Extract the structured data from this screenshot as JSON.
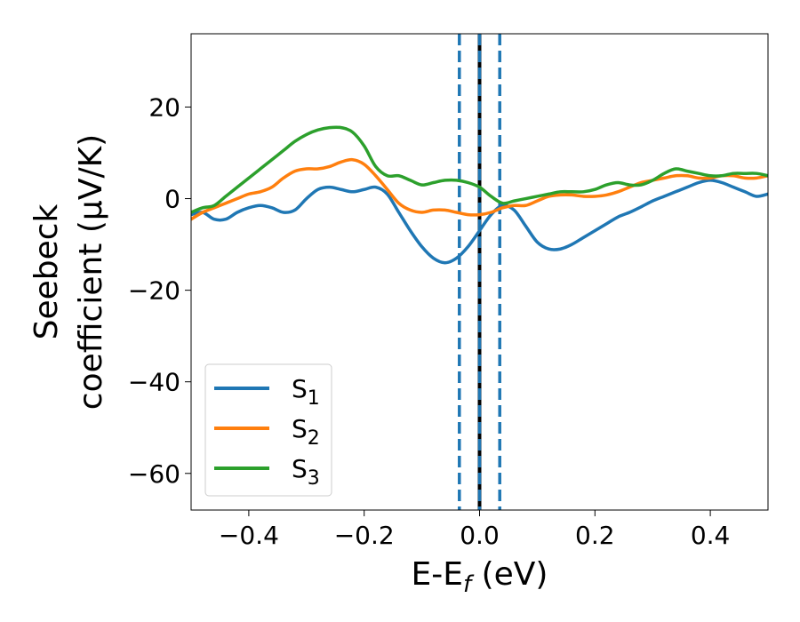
{
  "chart_data": {
    "type": "line",
    "xlabel": {
      "main": "E-E",
      "sub": "f",
      "tail": " (eV)"
    },
    "ylabel": {
      "line1": "Seebeck",
      "line2": "coefficient  (μV/K)"
    },
    "xlim": [
      -0.5,
      0.5
    ],
    "ylim": [
      -68,
      36
    ],
    "xticks": [
      {
        "value": -0.4,
        "label": "−0.4"
      },
      {
        "value": -0.2,
        "label": "−0.2"
      },
      {
        "value": 0.0,
        "label": "0.0"
      },
      {
        "value": 0.2,
        "label": "0.2"
      },
      {
        "value": 0.4,
        "label": "0.4"
      }
    ],
    "yticks": [
      {
        "value": 20,
        "label": "20"
      },
      {
        "value": 0,
        "label": "0"
      },
      {
        "value": -20,
        "label": "−20"
      },
      {
        "value": -40,
        "label": "−40"
      },
      {
        "value": -60,
        "label": "−60"
      }
    ],
    "grid": false,
    "legend_position": "lower-left",
    "vlines": [
      {
        "x": -0.035,
        "style": "dashed",
        "color": "#1f77b4"
      },
      {
        "x": 0.035,
        "style": "dashed",
        "color": "#1f77b4"
      },
      {
        "x": 0.0,
        "style": "solid",
        "color": "#000000"
      },
      {
        "x": 0.0,
        "style": "dashed",
        "color": "#1f77b4"
      }
    ],
    "series": [
      {
        "name": "S",
        "sub": "1",
        "color": "#1f77b4",
        "points": [
          [
            -0.5,
            -3.5
          ],
          [
            -0.48,
            -3.0
          ],
          [
            -0.46,
            -4.5
          ],
          [
            -0.44,
            -4.5
          ],
          [
            -0.42,
            -3.0
          ],
          [
            -0.4,
            -2.0
          ],
          [
            -0.38,
            -1.5
          ],
          [
            -0.36,
            -2.0
          ],
          [
            -0.34,
            -3.0
          ],
          [
            -0.32,
            -2.5
          ],
          [
            -0.3,
            0.0
          ],
          [
            -0.28,
            2.0
          ],
          [
            -0.26,
            2.5
          ],
          [
            -0.24,
            2.0
          ],
          [
            -0.22,
            1.5
          ],
          [
            -0.2,
            2.0
          ],
          [
            -0.18,
            2.5
          ],
          [
            -0.16,
            1.0
          ],
          [
            -0.14,
            -3.0
          ],
          [
            -0.12,
            -7.0
          ],
          [
            -0.1,
            -10.5
          ],
          [
            -0.08,
            -13.0
          ],
          [
            -0.06,
            -14.0
          ],
          [
            -0.04,
            -13.0
          ],
          [
            -0.02,
            -10.5
          ],
          [
            0.0,
            -7.0
          ],
          [
            0.02,
            -3.5
          ],
          [
            0.04,
            -1.5
          ],
          [
            0.06,
            -2.5
          ],
          [
            0.08,
            -6.0
          ],
          [
            0.1,
            -9.5
          ],
          [
            0.12,
            -11.0
          ],
          [
            0.14,
            -11.0
          ],
          [
            0.16,
            -10.0
          ],
          [
            0.18,
            -8.5
          ],
          [
            0.2,
            -7.0
          ],
          [
            0.22,
            -5.5
          ],
          [
            0.24,
            -4.0
          ],
          [
            0.26,
            -3.0
          ],
          [
            0.28,
            -1.8
          ],
          [
            0.3,
            -0.5
          ],
          [
            0.32,
            0.5
          ],
          [
            0.34,
            1.5
          ],
          [
            0.36,
            2.5
          ],
          [
            0.38,
            3.5
          ],
          [
            0.4,
            4.0
          ],
          [
            0.42,
            3.5
          ],
          [
            0.44,
            2.5
          ],
          [
            0.46,
            1.5
          ],
          [
            0.48,
            0.5
          ],
          [
            0.5,
            1.0
          ]
        ]
      },
      {
        "name": "S",
        "sub": "2",
        "color": "#ff7f0e",
        "points": [
          [
            -0.5,
            -4.5
          ],
          [
            -0.48,
            -3.0
          ],
          [
            -0.46,
            -2.0
          ],
          [
            -0.44,
            -1.0
          ],
          [
            -0.42,
            0.0
          ],
          [
            -0.4,
            1.0
          ],
          [
            -0.38,
            1.5
          ],
          [
            -0.36,
            2.5
          ],
          [
            -0.34,
            4.5
          ],
          [
            -0.32,
            6.0
          ],
          [
            -0.3,
            6.5
          ],
          [
            -0.28,
            6.5
          ],
          [
            -0.26,
            7.0
          ],
          [
            -0.24,
            8.0
          ],
          [
            -0.22,
            8.5
          ],
          [
            -0.2,
            7.5
          ],
          [
            -0.18,
            5.0
          ],
          [
            -0.16,
            2.0
          ],
          [
            -0.14,
            -1.0
          ],
          [
            -0.12,
            -2.5
          ],
          [
            -0.1,
            -3.0
          ],
          [
            -0.08,
            -2.5
          ],
          [
            -0.06,
            -2.5
          ],
          [
            -0.04,
            -3.0
          ],
          [
            -0.02,
            -3.5
          ],
          [
            0.0,
            -3.5
          ],
          [
            0.02,
            -3.0
          ],
          [
            0.04,
            -2.0
          ],
          [
            0.06,
            -1.5
          ],
          [
            0.08,
            -1.5
          ],
          [
            0.1,
            -0.5
          ],
          [
            0.12,
            0.5
          ],
          [
            0.14,
            0.8
          ],
          [
            0.16,
            0.8
          ],
          [
            0.18,
            0.5
          ],
          [
            0.2,
            0.5
          ],
          [
            0.22,
            0.8
          ],
          [
            0.24,
            1.5
          ],
          [
            0.26,
            2.5
          ],
          [
            0.28,
            3.5
          ],
          [
            0.3,
            4.0
          ],
          [
            0.32,
            4.5
          ],
          [
            0.34,
            5.0
          ],
          [
            0.36,
            5.0
          ],
          [
            0.38,
            4.5
          ],
          [
            0.4,
            4.5
          ],
          [
            0.42,
            5.0
          ],
          [
            0.44,
            5.0
          ],
          [
            0.46,
            4.5
          ],
          [
            0.48,
            4.5
          ],
          [
            0.5,
            5.0
          ]
        ]
      },
      {
        "name": "S",
        "sub": "3",
        "color": "#2ca02c",
        "points": [
          [
            -0.5,
            -3.0
          ],
          [
            -0.48,
            -2.0
          ],
          [
            -0.46,
            -1.5
          ],
          [
            -0.44,
            0.5
          ],
          [
            -0.42,
            2.5
          ],
          [
            -0.4,
            4.5
          ],
          [
            -0.38,
            6.5
          ],
          [
            -0.36,
            8.5
          ],
          [
            -0.34,
            10.5
          ],
          [
            -0.32,
            12.5
          ],
          [
            -0.3,
            14.0
          ],
          [
            -0.28,
            15.0
          ],
          [
            -0.26,
            15.5
          ],
          [
            -0.24,
            15.5
          ],
          [
            -0.22,
            14.5
          ],
          [
            -0.2,
            11.5
          ],
          [
            -0.18,
            7.0
          ],
          [
            -0.16,
            5.0
          ],
          [
            -0.14,
            5.0
          ],
          [
            -0.12,
            4.0
          ],
          [
            -0.1,
            3.0
          ],
          [
            -0.08,
            3.5
          ],
          [
            -0.06,
            4.0
          ],
          [
            -0.04,
            4.0
          ],
          [
            -0.02,
            3.5
          ],
          [
            0.0,
            2.5
          ],
          [
            0.02,
            0.5
          ],
          [
            0.04,
            -1.0
          ],
          [
            0.06,
            -0.5
          ],
          [
            0.08,
            0.0
          ],
          [
            0.1,
            0.5
          ],
          [
            0.12,
            1.0
          ],
          [
            0.14,
            1.5
          ],
          [
            0.16,
            1.5
          ],
          [
            0.18,
            1.5
          ],
          [
            0.2,
            2.0
          ],
          [
            0.22,
            3.0
          ],
          [
            0.24,
            3.5
          ],
          [
            0.26,
            3.0
          ],
          [
            0.28,
            3.0
          ],
          [
            0.3,
            4.0
          ],
          [
            0.32,
            5.5
          ],
          [
            0.34,
            6.5
          ],
          [
            0.36,
            6.0
          ],
          [
            0.38,
            5.5
          ],
          [
            0.4,
            5.0
          ],
          [
            0.42,
            5.0
          ],
          [
            0.44,
            5.5
          ],
          [
            0.46,
            5.5
          ],
          [
            0.48,
            5.5
          ],
          [
            0.5,
            5.0
          ]
        ]
      }
    ]
  }
}
